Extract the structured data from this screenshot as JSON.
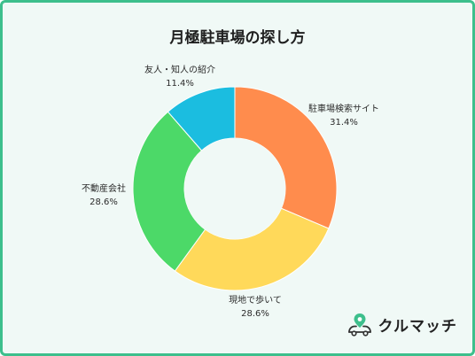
{
  "chart_data": {
    "type": "pie",
    "title": "月極駐車場の探し方",
    "categories": [
      "駐車場検索サイト",
      "現地で歩いて",
      "不動産会社",
      "友人・知人の紹介"
    ],
    "values": [
      31.4,
      28.6,
      28.6,
      11.4
    ],
    "value_labels": [
      "31.4%",
      "28.6%",
      "28.6%",
      "11.4%"
    ],
    "colors": [
      "#ff8c4d",
      "#ffd95a",
      "#4cd968",
      "#1bbde0"
    ],
    "donut": true,
    "start_angle": "top",
    "direction": "clockwise"
  },
  "brand": {
    "name": "クルマッチ",
    "icon": "car-pin-logo",
    "accent": "#3dbf8c"
  }
}
